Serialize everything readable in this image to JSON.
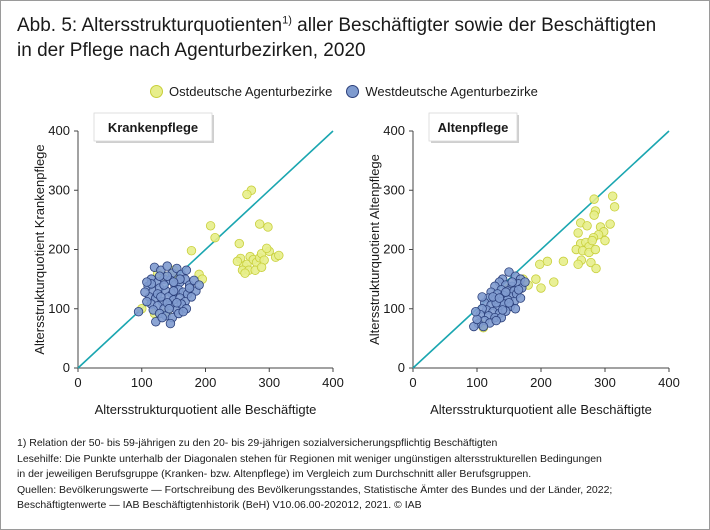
{
  "title_line1": "Abb. 5: Altersstrukturquotienten",
  "title_sup": "1)",
  "title_line1_rest": " aller Beschäftigter sowie der Beschäftigten",
  "title_line2": "in der Pflege nach Agenturbezirken, 2020",
  "colors": {
    "ost_fill": "#e7ee8b",
    "ost_stroke": "#c8cf3a",
    "west_fill": "#7f9bcf",
    "west_stroke": "#2b3f7a",
    "diagonal": "#1aa6b0",
    "axis": "#444444"
  },
  "legend": [
    {
      "label": "Ostdeutsche Agenturbezirke",
      "series": "ost"
    },
    {
      "label": "Westdeutsche Agenturbezirke",
      "series": "west"
    }
  ],
  "chart_data": [
    {
      "type": "scatter",
      "title": "Krankenpflege",
      "xlabel": "Altersstrukturquotient alle Beschäftigte",
      "ylabel": "Altersstrukturquotient Krankenpflege",
      "xlim": [
        0,
        400
      ],
      "ylim": [
        0,
        400
      ],
      "xticks": [
        0,
        100,
        200,
        300,
        400
      ],
      "yticks": [
        0,
        100,
        200,
        300,
        400
      ],
      "diagonal": true,
      "series": [
        {
          "name": "Ostdeutsche Agenturbezirke",
          "key": "ost",
          "points": [
            [
              272,
              300
            ],
            [
              265,
              293
            ],
            [
              285,
              243
            ],
            [
              298,
              238
            ],
            [
              208,
              240
            ],
            [
              215,
              220
            ],
            [
              178,
              198
            ],
            [
              253,
              210
            ],
            [
              255,
              185
            ],
            [
              260,
              172
            ],
            [
              265,
              175
            ],
            [
              270,
              188
            ],
            [
              275,
              183
            ],
            [
              280,
              178
            ],
            [
              285,
              186
            ],
            [
              288,
              193
            ],
            [
              292,
              182
            ],
            [
              300,
              197
            ],
            [
              310,
              187
            ],
            [
              315,
              190
            ],
            [
              258,
              165
            ],
            [
              268,
              165
            ],
            [
              278,
              165
            ],
            [
              288,
              170
            ],
            [
              250,
              180
            ],
            [
              262,
              160
            ],
            [
              296,
              202
            ],
            [
              190,
              158
            ],
            [
              195,
              150
            ],
            [
              150,
              165
            ],
            [
              125,
              160
            ],
            [
              135,
              155
            ],
            [
              155,
              150
            ],
            [
              100,
              100
            ],
            [
              120,
              92
            ],
            [
              140,
              95
            ]
          ]
        },
        {
          "name": "Westdeutsche Agenturbezirke",
          "key": "west",
          "points": [
            [
              120,
              170
            ],
            [
              130,
              165
            ],
            [
              140,
              172
            ],
            [
              148,
              160
            ],
            [
              155,
              168
            ],
            [
              162,
              158
            ],
            [
              170,
              165
            ],
            [
              115,
              150
            ],
            [
              125,
              145
            ],
            [
              135,
              150
            ],
            [
              145,
              148
            ],
            [
              152,
              140
            ],
            [
              160,
              145
            ],
            [
              168,
              150
            ],
            [
              175,
              140
            ],
            [
              110,
              138
            ],
            [
              118,
              130
            ],
            [
              128,
              135
            ],
            [
              138,
              130
            ],
            [
              148,
              125
            ],
            [
              158,
              132
            ],
            [
              165,
              128
            ],
            [
              172,
              125
            ],
            [
              185,
              130
            ],
            [
              112,
              120
            ],
            [
              122,
              118
            ],
            [
              132,
              112
            ],
            [
              142,
              120
            ],
            [
              150,
              115
            ],
            [
              160,
              118
            ],
            [
              168,
              112
            ],
            [
              178,
              120
            ],
            [
              115,
              108
            ],
            [
              125,
              105
            ],
            [
              135,
              100
            ],
            [
              145,
              105
            ],
            [
              155,
              98
            ],
            [
              162,
              108
            ],
            [
              170,
              100
            ],
            [
              105,
              128
            ],
            [
              108,
              112
            ],
            [
              118,
              98
            ],
            [
              128,
              92
            ],
            [
              138,
              88
            ],
            [
              148,
              85
            ],
            [
              158,
              92
            ],
            [
              165,
              95
            ],
            [
              122,
              78
            ],
            [
              132,
              85
            ],
            [
              145,
              75
            ],
            [
              95,
              95
            ],
            [
              135,
              140
            ],
            [
              140,
              110
            ],
            [
              150,
              130
            ],
            [
              143,
              100
            ],
            [
              160,
              150
            ],
            [
              125,
              125
            ],
            [
              155,
              110
            ],
            [
              130,
              120
            ],
            [
              175,
              135
            ],
            [
              115,
              142
            ],
            [
              150,
              145
            ],
            [
              140,
              155
            ],
            [
              128,
              155
            ],
            [
              182,
              148
            ],
            [
              190,
              140
            ],
            [
              108,
              145
            ]
          ]
        }
      ]
    },
    {
      "type": "scatter",
      "title": "Altenpflege",
      "xlabel": "Altersstrukturquotient alle Beschäftigte",
      "ylabel": "Altersstrukturquotient Altenpflege",
      "xlim": [
        0,
        400
      ],
      "ylim": [
        0,
        400
      ],
      "xticks": [
        0,
        100,
        200,
        300,
        400
      ],
      "yticks": [
        0,
        100,
        200,
        300,
        400
      ],
      "diagonal": true,
      "series": [
        {
          "name": "Ostdeutsche Agenturbezirke",
          "key": "ost",
          "points": [
            [
              283,
              285
            ],
            [
              312,
              290
            ],
            [
              315,
              272
            ],
            [
              285,
              265
            ],
            [
              283,
              258
            ],
            [
              262,
              245
            ],
            [
              272,
              240
            ],
            [
              293,
              238
            ],
            [
              298,
              230
            ],
            [
              308,
              243
            ],
            [
              290,
              225
            ],
            [
              282,
              220
            ],
            [
              258,
              228
            ],
            [
              262,
              210
            ],
            [
              270,
              212
            ],
            [
              275,
              205
            ],
            [
              280,
              215
            ],
            [
              300,
              215
            ],
            [
              255,
              200
            ],
            [
              265,
              198
            ],
            [
              275,
              195
            ],
            [
              285,
              200
            ],
            [
              263,
              182
            ],
            [
              278,
              178
            ],
            [
              258,
              175
            ],
            [
              286,
              168
            ],
            [
              210,
              180
            ],
            [
              235,
              180
            ],
            [
              198,
              175
            ],
            [
              192,
              150
            ],
            [
              220,
              145
            ],
            [
              200,
              135
            ],
            [
              172,
              150
            ],
            [
              180,
              140
            ],
            [
              150,
              135
            ],
            [
              110,
              68
            ],
            [
              105,
              75
            ]
          ]
        },
        {
          "name": "Westdeutsche Agenturbezirke",
          "key": "west",
          "points": [
            [
              150,
              162
            ],
            [
              160,
              155
            ],
            [
              168,
              150
            ],
            [
              140,
              150
            ],
            [
              135,
              145
            ],
            [
              145,
              140
            ],
            [
              155,
              138
            ],
            [
              165,
              142
            ],
            [
              128,
              138
            ],
            [
              138,
              132
            ],
            [
              148,
              130
            ],
            [
              158,
              130
            ],
            [
              170,
              135
            ],
            [
              122,
              128
            ],
            [
              132,
              125
            ],
            [
              142,
              122
            ],
            [
              152,
              120
            ],
            [
              162,
              125
            ],
            [
              118,
              118
            ],
            [
              128,
              115
            ],
            [
              138,
              112
            ],
            [
              148,
              115
            ],
            [
              158,
              112
            ],
            [
              168,
              118
            ],
            [
              112,
              110
            ],
            [
              122,
              106
            ],
            [
              132,
              102
            ],
            [
              142,
              108
            ],
            [
              152,
              104
            ],
            [
              115,
              98
            ],
            [
              125,
              95
            ],
            [
              135,
              92
            ],
            [
              145,
              96
            ],
            [
              108,
              100
            ],
            [
              118,
              88
            ],
            [
              128,
              85
            ],
            [
              138,
              85
            ],
            [
              105,
              90
            ],
            [
              112,
              80
            ],
            [
              120,
              76
            ],
            [
              130,
              80
            ],
            [
              102,
              75
            ],
            [
              110,
              70
            ],
            [
              95,
              70
            ],
            [
              100,
              82
            ],
            [
              160,
              100
            ],
            [
              155,
              145
            ],
            [
              130,
              110
            ],
            [
              145,
              128
            ],
            [
              150,
              110
            ],
            [
              125,
              120
            ],
            [
              135,
              118
            ],
            [
              175,
              145
            ],
            [
              165,
              132
            ],
            [
              140,
              98
            ],
            [
              108,
              120
            ],
            [
              98,
              95
            ]
          ]
        }
      ]
    }
  ],
  "footnotes": [
    "1) Relation der 50- bis 59-jährigen zu den 20- bis 29-jährigen sozialversicherungspflichtig Beschäftigten",
    "Lesehilfe: Die Punkte unterhalb der Diagonalen stehen für Regionen mit weniger ungünstigen altersstrukturellen Bedingungen",
    "in der jeweiligen Berufsgruppe (Kranken- bzw. Altenpflege) im Vergleich zum Durchschnitt aller Berufsgruppen.",
    "Quellen: Bevölkerungswerte — Fortschreibung des Bevölkerungsstandes, Statistische Ämter des Bundes und der Länder, 2022;",
    "Beschäftigtenwerte — IAB Beschäftigtenhistorik (BeH) V10.06.00-202012, 2021. © IAB"
  ]
}
